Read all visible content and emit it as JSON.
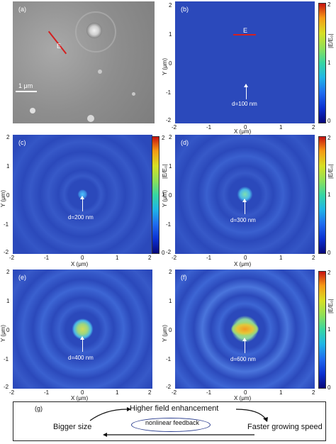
{
  "panels": {
    "a": {
      "label": "(a)",
      "e_label": "E",
      "scalebar": "1 μm"
    },
    "b": {
      "label": "(b)",
      "e_label": "E",
      "d_label": "d=100 nm"
    },
    "c": {
      "label": "(c)",
      "d_label": "d=200 nm"
    },
    "d": {
      "label": "(d)",
      "d_label": "d=300 nm"
    },
    "e": {
      "label": "(e)",
      "d_label": "d=400 nm"
    },
    "f": {
      "label": "(f)",
      "d_label": "d=600 nm"
    }
  },
  "axes": {
    "xlabel": "X (μm)",
    "ylabel": "Y (μm)",
    "ticks": [
      "-2",
      "-1",
      "0",
      "1",
      "2"
    ],
    "yticks": [
      "2",
      "1",
      "0",
      "-1",
      "-2"
    ]
  },
  "colorbar": {
    "label": "|E/E₀|",
    "ticks": [
      "2",
      "1",
      "0"
    ]
  },
  "diagram": {
    "label": "(g)",
    "top": "Higher field enhancement",
    "left": "Bigger size",
    "right": "Faster growing speed",
    "center": "nonlinear feedback"
  },
  "colors": {
    "field_bg": "#2b49bb",
    "cbar_high": "#c7120f",
    "cbar_low": "#08087a",
    "arrow": "#ffffff",
    "e_marker": "#d42020"
  }
}
